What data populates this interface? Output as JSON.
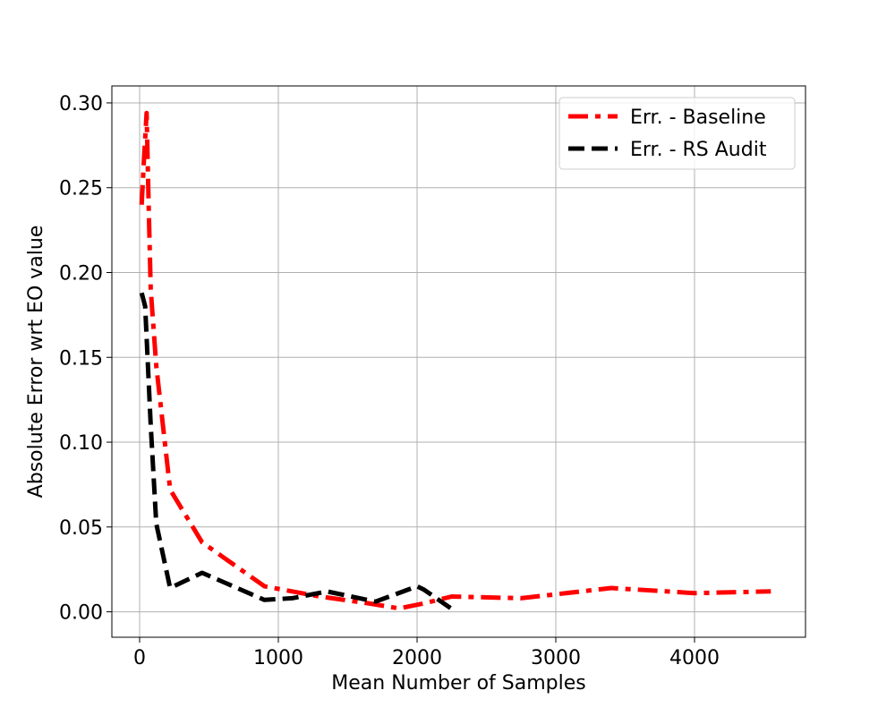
{
  "chart_data": {
    "type": "line",
    "xlabel": "Mean Number of Samples",
    "ylabel": "Absolute Error wrt EO value",
    "xlim": [
      -200,
      4800
    ],
    "ylim": [
      -0.015,
      0.31
    ],
    "xticks": [
      0,
      1000,
      2000,
      3000,
      4000
    ],
    "xtick_labels": [
      "0",
      "1000",
      "2000",
      "3000",
      "4000"
    ],
    "yticks": [
      0.0,
      0.05,
      0.1,
      0.15,
      0.2,
      0.25,
      0.3
    ],
    "ytick_labels": [
      "0.00",
      "0.05",
      "0.10",
      "0.15",
      "0.20",
      "0.25",
      "0.30"
    ],
    "grid": true,
    "legend_position": "top-right",
    "series": [
      {
        "name": "Err. - Baseline",
        "color": "#ff0000",
        "style": "dashdot",
        "x": [
          15,
          30,
          50,
          65,
          80,
          120,
          220,
          450,
          900,
          1300,
          1650,
          1870,
          2050,
          2250,
          2750,
          3400,
          4000,
          4550
        ],
        "y": [
          0.24,
          0.265,
          0.294,
          0.24,
          0.19,
          0.145,
          0.072,
          0.041,
          0.015,
          0.009,
          0.005,
          0.002,
          0.005,
          0.009,
          0.008,
          0.014,
          0.011,
          0.012
        ]
      },
      {
        "name": "Err. - RS Audit",
        "color": "#000000",
        "style": "dashed",
        "x": [
          15,
          40,
          80,
          120,
          220,
          450,
          900,
          1100,
          1350,
          1700,
          2000,
          2050,
          2280
        ],
        "y": [
          0.188,
          0.18,
          0.11,
          0.052,
          0.014,
          0.023,
          0.007,
          0.008,
          0.012,
          0.006,
          0.015,
          0.013,
          0.0
        ]
      }
    ]
  }
}
